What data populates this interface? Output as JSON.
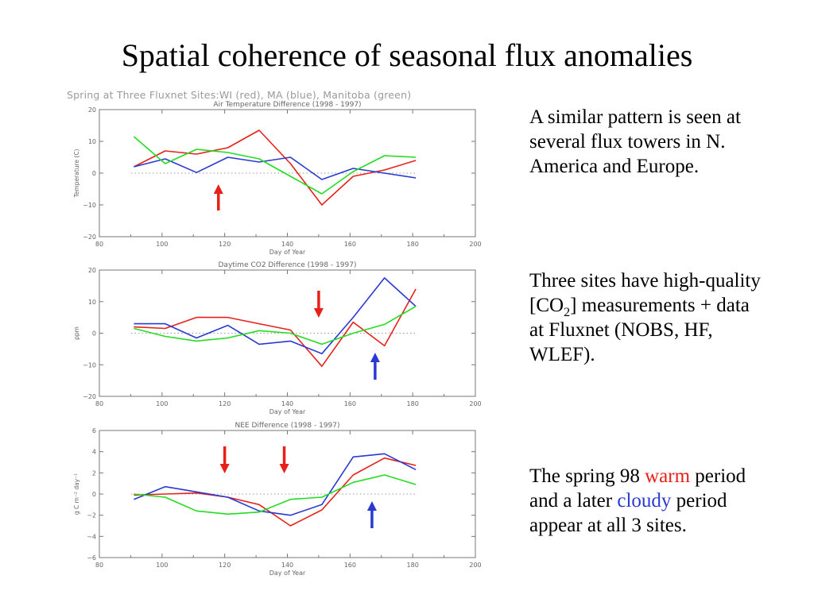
{
  "slide": {
    "title": "Spatial coherence of seasonal flux anomalies",
    "suptitle": "Spring at Three Fluxnet Sites:WI (red), MA (blue), Manitoba (green)",
    "text": {
      "p1": "A similar pattern is seen at several flux towers in N. America and Europe.",
      "p2_a": "Three sites have high-quality [CO",
      "p2_sub": "2",
      "p2_b": "] measurements + data at Fluxnet (NOBS, HF, WLEF).",
      "p3_a": "The spring 98 ",
      "p3_warm": "warm",
      "p3_b": " period and a later ",
      "p3_cloudy": "cloudy",
      "p3_c": " period appear at all 3 sites."
    },
    "colors": {
      "warm": "#e8201a",
      "cloudy": "#2a3ad0"
    }
  },
  "chart_data": [
    {
      "type": "line",
      "title": "Air Temperature Difference (1998 - 1997)",
      "xlabel": "Day of Year",
      "ylabel": "Temperature (C)",
      "xlim": [
        80,
        200
      ],
      "ylim": [
        -20,
        20
      ],
      "xticks": [
        80,
        100,
        120,
        140,
        160,
        180,
        200
      ],
      "yticks": [
        -20,
        -10,
        0,
        10,
        20
      ],
      "zero_line": true,
      "series": [
        {
          "color": "#e8201a",
          "x": [
            91,
            101,
            111,
            121,
            131,
            141,
            151,
            161,
            171,
            181
          ],
          "y": [
            2,
            7,
            6,
            8,
            13.5,
            3,
            -10,
            -1,
            1,
            4
          ]
        },
        {
          "color": "#2a3ad0",
          "x": [
            91,
            101,
            111,
            121,
            131,
            141,
            151,
            161,
            171,
            181
          ],
          "y": [
            2,
            4.5,
            0.2,
            5,
            3.5,
            5,
            -2,
            1.5,
            0,
            -1.5
          ]
        },
        {
          "color": "#22dd22",
          "x": [
            91,
            101,
            111,
            121,
            131,
            141,
            151,
            161,
            171,
            181
          ],
          "y": [
            11.5,
            3,
            7.5,
            6.5,
            4.5,
            -1,
            -6.5,
            0.5,
            5.5,
            5
          ]
        }
      ],
      "arrows": [
        {
          "x": 118,
          "direction": "up",
          "color": "#e8201a"
        }
      ]
    },
    {
      "type": "line",
      "title": "Daytime CO2 Difference (1998 - 1997)",
      "xlabel": "Day of Year",
      "ylabel": "ppm",
      "xlim": [
        80,
        200
      ],
      "ylim": [
        -20,
        20
      ],
      "xticks": [
        80,
        100,
        120,
        140,
        160,
        180,
        200
      ],
      "yticks": [
        -20,
        -10,
        0,
        10,
        20
      ],
      "zero_line": true,
      "series": [
        {
          "color": "#e8201a",
          "x": [
            91,
            101,
            111,
            121,
            131,
            141,
            151,
            161,
            171,
            181
          ],
          "y": [
            2,
            1.5,
            5,
            5,
            3,
            1,
            -10.5,
            3.5,
            -4,
            14
          ]
        },
        {
          "color": "#2a3ad0",
          "x": [
            91,
            101,
            111,
            121,
            131,
            141,
            151,
            161,
            171,
            181
          ],
          "y": [
            3,
            3,
            -1.5,
            2.5,
            -3.5,
            -2.5,
            -6.5,
            5,
            17.5,
            8.5
          ]
        },
        {
          "color": "#22dd22",
          "x": [
            91,
            101,
            111,
            121,
            131,
            141,
            151,
            161,
            171,
            181
          ],
          "y": [
            1.5,
            -1,
            -2.5,
            -1.5,
            0.8,
            0,
            -3.5,
            0,
            2.8,
            8.5
          ]
        }
      ],
      "arrows": [
        {
          "x": 150,
          "direction": "down",
          "color": "#e8201a"
        },
        {
          "x": 168,
          "direction": "up",
          "color": "#2a3ad0"
        }
      ]
    },
    {
      "type": "line",
      "title": "NEE Difference (1998 - 1997)",
      "xlabel": "Day of Year",
      "ylabel": "g C m⁻² day⁻¹",
      "xlim": [
        80,
        200
      ],
      "ylim": [
        -6,
        6
      ],
      "xticks": [
        80,
        100,
        120,
        140,
        160,
        180,
        200
      ],
      "yticks": [
        -6,
        -4,
        -2,
        0,
        2,
        4,
        6
      ],
      "zero_line": true,
      "series": [
        {
          "color": "#e8201a",
          "x": [
            91,
            101,
            111,
            121,
            131,
            141,
            151,
            161,
            171,
            181
          ],
          "y": [
            -0.1,
            0,
            0.1,
            -0.3,
            -1,
            -3,
            -1.5,
            1.8,
            3.4,
            2.7
          ]
        },
        {
          "color": "#2a3ad0",
          "x": [
            91,
            101,
            111,
            121,
            131,
            141,
            151,
            161,
            171,
            181
          ],
          "y": [
            -0.5,
            0.7,
            0.2,
            -0.3,
            -1.6,
            -2,
            -1,
            3.5,
            3.8,
            2.3
          ]
        },
        {
          "color": "#22dd22",
          "x": [
            91,
            101,
            111,
            121,
            131,
            141,
            151,
            161,
            171,
            181
          ],
          "y": [
            0,
            -0.3,
            -1.6,
            -1.9,
            -1.7,
            -0.5,
            -0.3,
            1.1,
            1.8,
            0.9
          ]
        }
      ],
      "arrows": [
        {
          "x": 120,
          "direction": "down",
          "color": "#e8201a"
        },
        {
          "x": 139,
          "direction": "down",
          "color": "#e8201a"
        },
        {
          "x": 167,
          "direction": "up",
          "color": "#2a3ad0"
        }
      ]
    }
  ]
}
